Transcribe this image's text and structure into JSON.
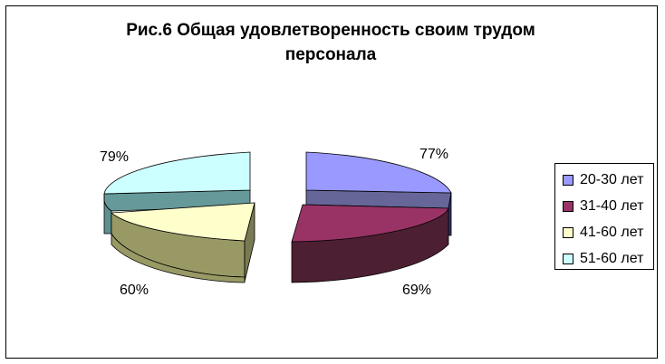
{
  "chart_data": {
    "type": "pie",
    "title": "Рис.6 Общая удовлетворенность своим трудом персонала",
    "title_lines": [
      "Рис.6 Общая удовлетворенность своим трудом",
      "персонала"
    ],
    "categories": [
      "20-30 лет",
      "31-40 лет",
      "41-60 лет",
      "51-60 лет"
    ],
    "values": [
      77,
      69,
      60,
      79
    ],
    "data_labels": [
      "77%",
      "69%",
      "60%",
      "79%"
    ],
    "colors": [
      "#9999ff",
      "#993366",
      "#ffffcc",
      "#ccffff"
    ],
    "legend_position": "right",
    "exploded": true,
    "three_d": true
  }
}
